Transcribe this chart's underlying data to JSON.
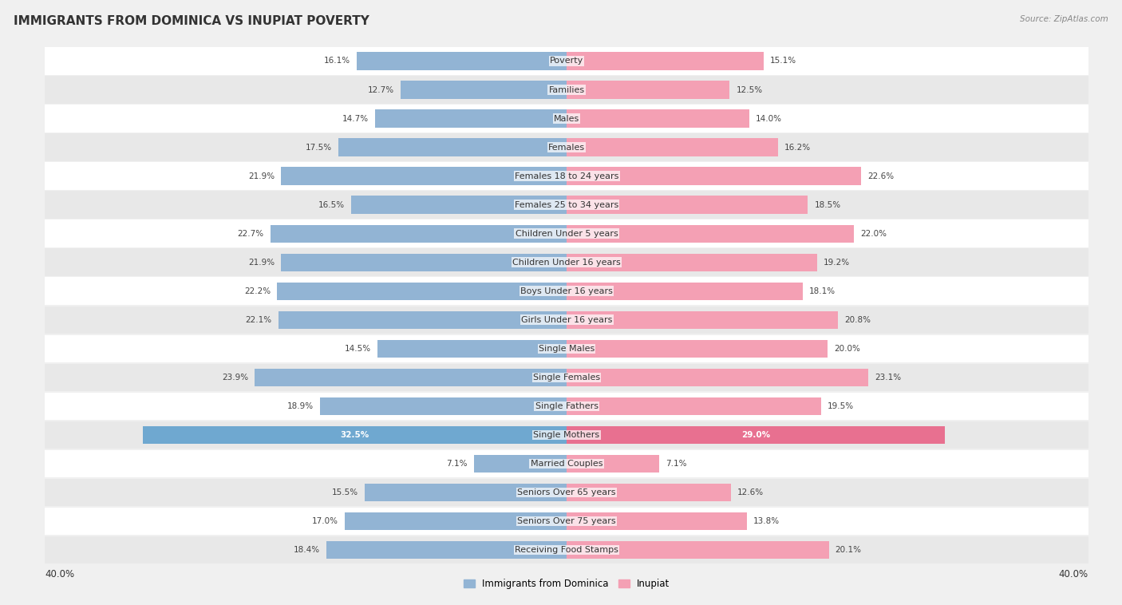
{
  "title": "IMMIGRANTS FROM DOMINICA VS INUPIAT POVERTY",
  "source": "Source: ZipAtlas.com",
  "categories": [
    "Poverty",
    "Families",
    "Males",
    "Females",
    "Females 18 to 24 years",
    "Females 25 to 34 years",
    "Children Under 5 years",
    "Children Under 16 years",
    "Boys Under 16 years",
    "Girls Under 16 years",
    "Single Males",
    "Single Females",
    "Single Fathers",
    "Single Mothers",
    "Married Couples",
    "Seniors Over 65 years",
    "Seniors Over 75 years",
    "Receiving Food Stamps"
  ],
  "dominica_values": [
    16.1,
    12.7,
    14.7,
    17.5,
    21.9,
    16.5,
    22.7,
    21.9,
    22.2,
    22.1,
    14.5,
    23.9,
    18.9,
    32.5,
    7.1,
    15.5,
    17.0,
    18.4
  ],
  "inupiat_values": [
    15.1,
    12.5,
    14.0,
    16.2,
    22.6,
    18.5,
    22.0,
    19.2,
    18.1,
    20.8,
    20.0,
    23.1,
    19.5,
    29.0,
    7.1,
    12.6,
    13.8,
    20.1
  ],
  "dominica_color": "#92b4d4",
  "inupiat_color": "#f4a0b4",
  "dominica_highlight": "#6fa8d0",
  "inupiat_highlight": "#e87090",
  "dominica_label": "Immigrants from Dominica",
  "inupiat_label": "Inupiat",
  "x_max": 40.0,
  "background_color": "#f0f0f0",
  "row_color_even": "#ffffff",
  "row_color_odd": "#e8e8e8",
  "title_fontsize": 11,
  "label_fontsize": 8.0,
  "value_fontsize": 7.5,
  "tick_fontsize": 8.5
}
